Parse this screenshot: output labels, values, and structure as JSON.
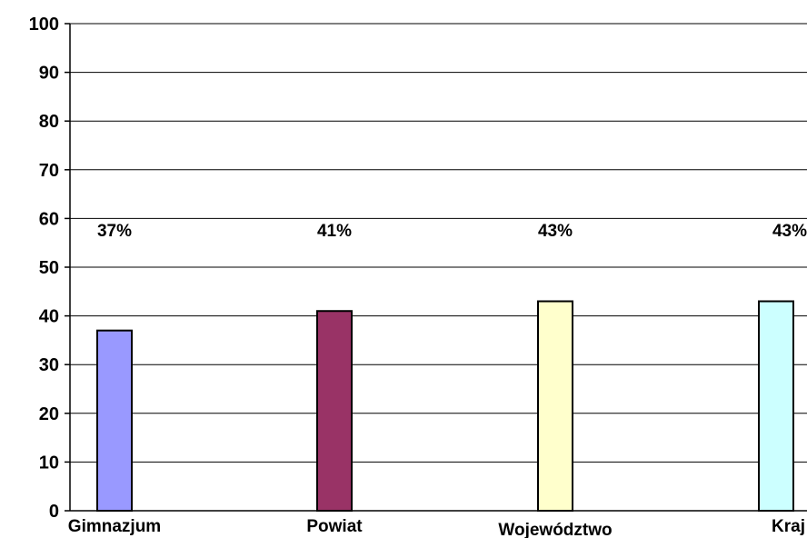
{
  "chart_data": {
    "type": "bar",
    "categories": [
      "Gimnazjum",
      "Powiat",
      "Województwo",
      "Kraj"
    ],
    "values": [
      37,
      41,
      43,
      43
    ],
    "data_labels": [
      "37%",
      "41%",
      "43%",
      "43%"
    ],
    "colors": [
      "#9999ff",
      "#993366",
      "#ffffcc",
      "#ccffff"
    ],
    "y_ticks": [
      "0",
      "10",
      "20",
      "30",
      "40",
      "50",
      "60",
      "70",
      "80",
      "90",
      "100"
    ],
    "ylim": [
      0,
      100
    ],
    "grid": true,
    "legend": "none"
  }
}
